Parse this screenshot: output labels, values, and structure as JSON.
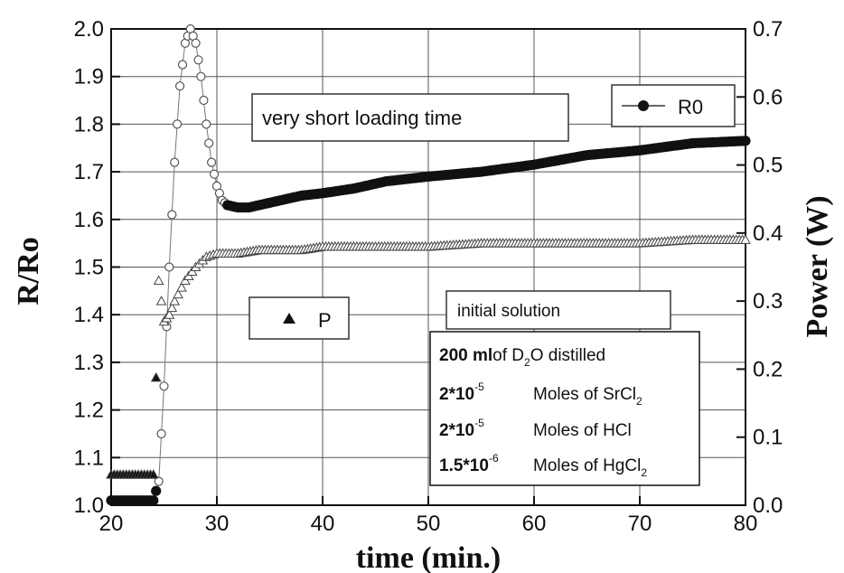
{
  "chart_data": {
    "type": "scatter",
    "xlabel": "time (min.)",
    "ylabel_left": "R/Ro",
    "ylabel_right": "Power (W)",
    "xlim": [
      20,
      80
    ],
    "ylim_left": [
      1.0,
      2.0
    ],
    "ylim_right": [
      0.0,
      0.7
    ],
    "x_ticks": [
      "20",
      "30",
      "40",
      "50",
      "60",
      "70",
      "80"
    ],
    "y_left_ticks": [
      "1.0",
      "1.1",
      "1.2",
      "1.3",
      "1.4",
      "1.5",
      "1.6",
      "1.7",
      "1.8",
      "1.9",
      "2.0"
    ],
    "y_right_ticks": [
      "0.0",
      "0.1",
      "0.2",
      "0.3",
      "0.4",
      "0.5",
      "0.6",
      "0.7"
    ],
    "grid": true,
    "series": [
      {
        "name": "R0",
        "axis": "left",
        "marker": "circle",
        "x": [
          20,
          22,
          24,
          24.5,
          25,
          25.5,
          26,
          26.5,
          27,
          27.5,
          28,
          28.5,
          29,
          29.5,
          30,
          30.5,
          31,
          32,
          33,
          34,
          36,
          38,
          40,
          43,
          46,
          50,
          55,
          60,
          65,
          70,
          75,
          80
        ],
        "y": [
          1.01,
          1.01,
          1.01,
          1.05,
          1.25,
          1.5,
          1.72,
          1.88,
          1.97,
          2.0,
          1.97,
          1.9,
          1.8,
          1.72,
          1.67,
          1.64,
          1.63,
          1.625,
          1.625,
          1.63,
          1.64,
          1.65,
          1.655,
          1.665,
          1.68,
          1.69,
          1.7,
          1.715,
          1.735,
          1.745,
          1.76,
          1.765
        ]
      },
      {
        "name": "P",
        "axis": "right",
        "marker": "triangle",
        "x": [
          20,
          22,
          24,
          24.5,
          25,
          25.5,
          26,
          27,
          28,
          29,
          30,
          32,
          34,
          36,
          38,
          40,
          45,
          50,
          55,
          60,
          65,
          70,
          75,
          80
        ],
        "y": [
          0.045,
          0.045,
          0.045,
          0.33,
          0.27,
          0.28,
          0.3,
          0.33,
          0.35,
          0.365,
          0.37,
          0.37,
          0.375,
          0.375,
          0.375,
          0.38,
          0.38,
          0.38,
          0.385,
          0.385,
          0.385,
          0.385,
          0.39,
          0.39
        ]
      }
    ]
  },
  "annotations": {
    "title_box": "very short loading time",
    "legend_r0": "R0",
    "legend_p": "P",
    "solution_header": "initial solution",
    "solution_lines": [
      {
        "bold": "200 ml",
        "text": "of D",
        "sub": "2",
        "after": "O distilled"
      },
      {
        "bold": "2*10",
        "sup": "-5",
        "text": "Moles of SrCl",
        "sub": "2",
        "after": ""
      },
      {
        "bold": "2*10",
        "sup": "-5",
        "text": "Moles of HCl",
        "sub": "",
        "after": ""
      },
      {
        "bold": "1.5*10",
        "sup": "-6",
        "text": "Moles of HgCl",
        "sub": "2",
        "after": ""
      }
    ]
  }
}
